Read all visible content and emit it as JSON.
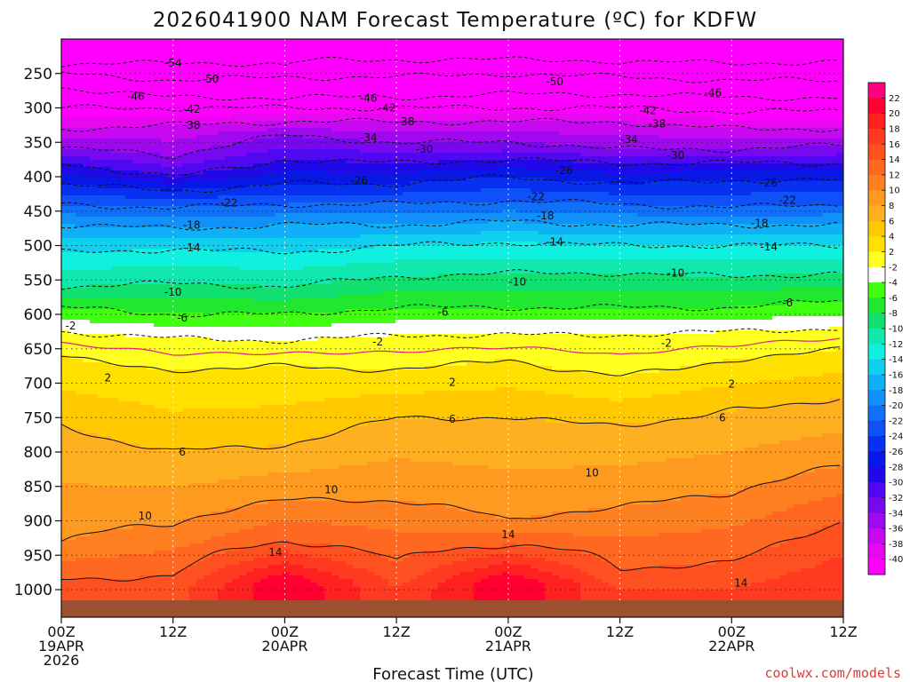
{
  "title": "2026041900 NAM Forecast Temperature (ºC) for KDFW",
  "credit": "coolwx.com/models",
  "colors": {
    "contour_dashed": "#111111",
    "contour_solid": "#111111",
    "freezing_line": "#e0207a",
    "ground": "#9c5030"
  },
  "chart_data": {
    "type": "heatmap",
    "title": "2026041900 NAM Forecast Temperature (ºC) for KDFW",
    "xlabel": "Forecast Time (UTC)",
    "ylabel": "",
    "x_ticks": [
      {
        "hour": 0,
        "lines": [
          "00Z",
          "19APR",
          "2026"
        ]
      },
      {
        "hour": 12,
        "lines": [
          "12Z"
        ]
      },
      {
        "hour": 24,
        "lines": [
          "00Z",
          "20APR"
        ]
      },
      {
        "hour": 36,
        "lines": [
          "12Z"
        ]
      },
      {
        "hour": 48,
        "lines": [
          "00Z",
          "21APR"
        ]
      },
      {
        "hour": 60,
        "lines": [
          "12Z"
        ]
      },
      {
        "hour": 72,
        "lines": [
          "00Z",
          "22APR"
        ]
      },
      {
        "hour": 84,
        "lines": [
          "12Z"
        ]
      }
    ],
    "x_range_hours": [
      0,
      84
    ],
    "y_axis": "pressure (hPa), reversed",
    "y_ticks": [
      250,
      300,
      350,
      400,
      450,
      500,
      550,
      600,
      650,
      700,
      750,
      800,
      850,
      900,
      950,
      1000
    ],
    "y_range": [
      200,
      1040
    ],
    "grid": true,
    "colorbar": {
      "labels": [
        "22",
        "20",
        "18",
        "16",
        "14",
        "12",
        "10",
        "8",
        "6",
        "4",
        "2",
        "-2",
        "-4",
        "-6",
        "-8",
        "-10",
        "-12",
        "-14",
        "-16",
        "-18",
        "-20",
        "-22",
        "-24",
        "-26",
        "-28",
        "-30",
        "-32",
        "-34",
        "-36",
        "-38",
        "-40"
      ],
      "colors": [
        "#ff0080",
        "#ff0030",
        "#ff2020",
        "#ff3a20",
        "#ff5020",
        "#ff6820",
        "#ff8020",
        "#ff9a20",
        "#ffb020",
        "#ffc800",
        "#ffe000",
        "#ffff20",
        "#ffffff",
        "#40ff10",
        "#20e830",
        "#10e070",
        "#10e8b0",
        "#10f0e0",
        "#10d0f0",
        "#10b0f8",
        "#1090f8",
        "#1070f8",
        "#1050f8",
        "#0830f0",
        "#0818e8",
        "#2008e8",
        "#5008f0",
        "#7808f0",
        "#a008f0",
        "#c808f0",
        "#e808f0",
        "#ff00ff"
      ]
    },
    "temperature_profiles": [
      {
        "hour": 0,
        "temps": [
          [
            230,
            -56
          ],
          [
            250,
            -50
          ],
          [
            270,
            -46
          ],
          [
            300,
            -42
          ],
          [
            330,
            -38
          ],
          [
            360,
            -34
          ],
          [
            380,
            -30
          ],
          [
            410,
            -26
          ],
          [
            440,
            -22
          ],
          [
            470,
            -18
          ],
          [
            510,
            -14
          ],
          [
            560,
            -10
          ],
          [
            590,
            -6
          ],
          [
            625,
            -2
          ],
          [
            660,
            2
          ],
          [
            760,
            6
          ],
          [
            930,
            10
          ],
          [
            985,
            14
          ],
          [
            1000,
            16
          ]
        ]
      },
      {
        "hour": 12,
        "temps": [
          [
            235,
            -54
          ],
          [
            260,
            -50
          ],
          [
            285,
            -46
          ],
          [
            300,
            -42
          ],
          [
            325,
            -38
          ],
          [
            370,
            -34
          ],
          [
            400,
            -30
          ],
          [
            420,
            -26
          ],
          [
            445,
            -22
          ],
          [
            475,
            -18
          ],
          [
            505,
            -14
          ],
          [
            555,
            -10
          ],
          [
            600,
            -6
          ],
          [
            635,
            -2
          ],
          [
            680,
            2
          ],
          [
            800,
            6
          ],
          [
            905,
            10
          ],
          [
            980,
            14
          ],
          [
            1000,
            15
          ]
        ]
      },
      {
        "hour": 24,
        "temps": [
          [
            240,
            -54
          ],
          [
            255,
            -50
          ],
          [
            285,
            -46
          ],
          [
            300,
            -42
          ],
          [
            320,
            -38
          ],
          [
            340,
            -34
          ],
          [
            375,
            -30
          ],
          [
            410,
            -26
          ],
          [
            440,
            -22
          ],
          [
            470,
            -18
          ],
          [
            510,
            -14
          ],
          [
            560,
            -10
          ],
          [
            600,
            -6
          ],
          [
            638,
            -2
          ],
          [
            675,
            2
          ],
          [
            790,
            6
          ],
          [
            870,
            10
          ],
          [
            930,
            14
          ],
          [
            960,
            18
          ],
          [
            990,
            22
          ]
        ]
      },
      {
        "hour": 36,
        "temps": [
          [
            230,
            -54
          ],
          [
            255,
            -50
          ],
          [
            285,
            -46
          ],
          [
            300,
            -42
          ],
          [
            320,
            -38
          ],
          [
            350,
            -34
          ],
          [
            380,
            -30
          ],
          [
            410,
            -26
          ],
          [
            440,
            -22
          ],
          [
            470,
            -18
          ],
          [
            500,
            -14
          ],
          [
            545,
            -10
          ],
          [
            590,
            -6
          ],
          [
            630,
            -2
          ],
          [
            680,
            2
          ],
          [
            750,
            6
          ],
          [
            870,
            10
          ],
          [
            960,
            14
          ],
          [
            1000,
            16
          ]
        ]
      },
      {
        "hour": 48,
        "temps": [
          [
            230,
            -54
          ],
          [
            250,
            -50
          ],
          [
            280,
            -46
          ],
          [
            300,
            -42
          ],
          [
            320,
            -38
          ],
          [
            350,
            -34
          ],
          [
            375,
            -30
          ],
          [
            400,
            -26
          ],
          [
            435,
            -22
          ],
          [
            465,
            -18
          ],
          [
            495,
            -14
          ],
          [
            540,
            -10
          ],
          [
            590,
            -6
          ],
          [
            630,
            -2
          ],
          [
            665,
            2
          ],
          [
            750,
            6
          ],
          [
            900,
            10
          ],
          [
            935,
            14
          ],
          [
            960,
            18
          ],
          [
            990,
            22
          ]
        ]
      },
      {
        "hour": 60,
        "temps": [
          [
            235,
            -54
          ],
          [
            255,
            -50
          ],
          [
            280,
            -46
          ],
          [
            300,
            -42
          ],
          [
            320,
            -38
          ],
          [
            360,
            -34
          ],
          [
            380,
            -30
          ],
          [
            410,
            -26
          ],
          [
            440,
            -22
          ],
          [
            470,
            -18
          ],
          [
            500,
            -14
          ],
          [
            540,
            -10
          ],
          [
            590,
            -6
          ],
          [
            630,
            -2
          ],
          [
            690,
            2
          ],
          [
            760,
            6
          ],
          [
            880,
            10
          ],
          [
            970,
            14
          ],
          [
            1000,
            16
          ]
        ]
      },
      {
        "hour": 72,
        "temps": [
          [
            235,
            -54
          ],
          [
            260,
            -50
          ],
          [
            285,
            -46
          ],
          [
            305,
            -42
          ],
          [
            330,
            -38
          ],
          [
            360,
            -34
          ],
          [
            380,
            -30
          ],
          [
            405,
            -26
          ],
          [
            445,
            -22
          ],
          [
            470,
            -18
          ],
          [
            500,
            -14
          ],
          [
            545,
            -10
          ],
          [
            590,
            -6
          ],
          [
            625,
            -2
          ],
          [
            665,
            2
          ],
          [
            740,
            6
          ],
          [
            860,
            10
          ],
          [
            960,
            14
          ],
          [
            1000,
            16
          ]
        ]
      },
      {
        "hour": 84,
        "temps": [
          [
            235,
            -54
          ],
          [
            260,
            -50
          ],
          [
            285,
            -46
          ],
          [
            305,
            -42
          ],
          [
            330,
            -38
          ],
          [
            355,
            -34
          ],
          [
            380,
            -30
          ],
          [
            405,
            -26
          ],
          [
            440,
            -22
          ],
          [
            470,
            -18
          ],
          [
            500,
            -14
          ],
          [
            540,
            -10
          ],
          [
            580,
            -6
          ],
          [
            620,
            -2
          ],
          [
            650,
            2
          ],
          [
            720,
            6
          ],
          [
            820,
            10
          ],
          [
            900,
            14
          ],
          [
            1000,
            18
          ]
        ]
      }
    ],
    "contour_labels": [
      {
        "text": "-54",
        "hour": 12,
        "p": 235
      },
      {
        "text": "-50",
        "hour": 16,
        "p": 258
      },
      {
        "text": "-50",
        "hour": 53,
        "p": 262
      },
      {
        "text": "-46",
        "hour": 8,
        "p": 283
      },
      {
        "text": "-46",
        "hour": 33,
        "p": 286
      },
      {
        "text": "-46",
        "hour": 70,
        "p": 278
      },
      {
        "text": "-42",
        "hour": 14,
        "p": 302
      },
      {
        "text": "-42",
        "hour": 35,
        "p": 300
      },
      {
        "text": "-42",
        "hour": 63,
        "p": 304
      },
      {
        "text": "-38",
        "hour": 14,
        "p": 325
      },
      {
        "text": "-38",
        "hour": 37,
        "p": 320
      },
      {
        "text": "-38",
        "hour": 64,
        "p": 323
      },
      {
        "text": "-34",
        "hour": 33,
        "p": 343
      },
      {
        "text": "-34",
        "hour": 61,
        "p": 346
      },
      {
        "text": "-30",
        "hour": 39,
        "p": 360
      },
      {
        "text": "-30",
        "hour": 66,
        "p": 369
      },
      {
        "text": "-26",
        "hour": 32,
        "p": 406
      },
      {
        "text": "-26",
        "hour": 54,
        "p": 391
      },
      {
        "text": "-26",
        "hour": 76,
        "p": 409
      },
      {
        "text": "-22",
        "hour": 18,
        "p": 438
      },
      {
        "text": "-22",
        "hour": 51,
        "p": 429
      },
      {
        "text": "-22",
        "hour": 78,
        "p": 434
      },
      {
        "text": "-18",
        "hour": 14,
        "p": 470
      },
      {
        "text": "-18",
        "hour": 52,
        "p": 457
      },
      {
        "text": "-18",
        "hour": 75,
        "p": 468
      },
      {
        "text": "-14",
        "hour": 14,
        "p": 503
      },
      {
        "text": "-14",
        "hour": 53,
        "p": 495
      },
      {
        "text": "-14",
        "hour": 76,
        "p": 502
      },
      {
        "text": "-10",
        "hour": 12,
        "p": 568
      },
      {
        "text": "-10",
        "hour": 49,
        "p": 553
      },
      {
        "text": "-10",
        "hour": 66,
        "p": 540
      },
      {
        "text": "-6",
        "hour": 13,
        "p": 605
      },
      {
        "text": "-6",
        "hour": 41,
        "p": 597
      },
      {
        "text": "-6",
        "hour": 78,
        "p": 583
      },
      {
        "text": "-2",
        "hour": 1,
        "p": 617
      },
      {
        "text": "-2",
        "hour": 34,
        "p": 640
      },
      {
        "text": "-2",
        "hour": 65,
        "p": 642
      },
      {
        "text": "2",
        "hour": 5,
        "p": 692
      },
      {
        "text": "2",
        "hour": 42,
        "p": 699
      },
      {
        "text": "2",
        "hour": 72,
        "p": 701
      },
      {
        "text": "6",
        "hour": 42,
        "p": 752
      },
      {
        "text": "6",
        "hour": 71,
        "p": 750
      },
      {
        "text": "6",
        "hour": 13,
        "p": 800
      },
      {
        "text": "10",
        "hour": 9,
        "p": 893
      },
      {
        "text": "10",
        "hour": 29,
        "p": 855
      },
      {
        "text": "10",
        "hour": 57,
        "p": 830
      },
      {
        "text": "14",
        "hour": 23,
        "p": 946
      },
      {
        "text": "14",
        "hour": 48,
        "p": 920
      },
      {
        "text": "14",
        "hour": 73,
        "p": 990
      }
    ]
  }
}
